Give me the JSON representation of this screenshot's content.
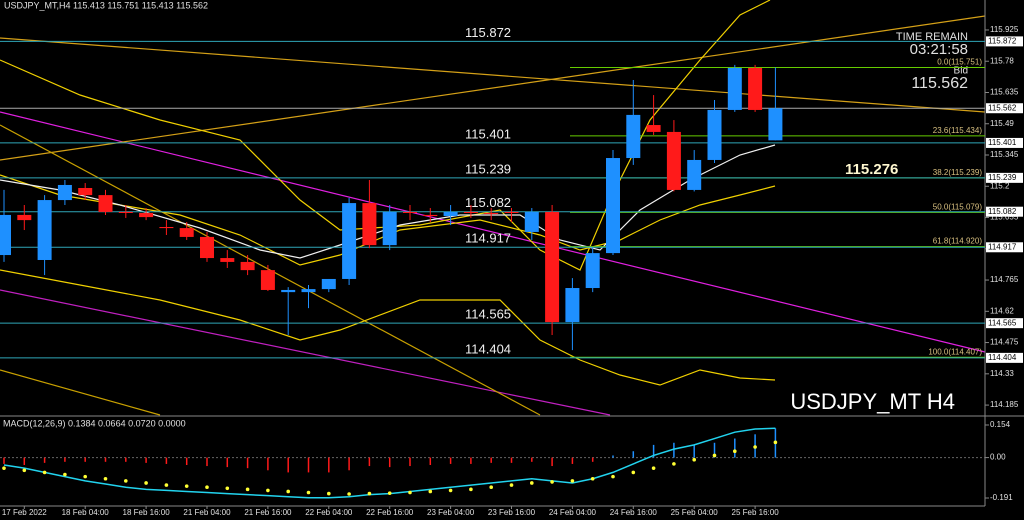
{
  "chart_data": [
    {
      "type": "candlestick",
      "title": "USDJPY_MT,H4  115.413 115.751 115.413 115.562",
      "watermark": "USDJPY_MT H4",
      "time_remain_label": "TIME REMAIN",
      "time_remain": "03:21:58",
      "bid_label": "Bid",
      "marker": 115.276,
      "up_color": "#1e90ff",
      "down_color": "#ff1a1a",
      "categories": [
        null,
        "17 Feb 2022",
        null,
        null,
        "18 Feb 04:00",
        null,
        null,
        "18 Feb 16:00",
        null,
        null,
        "21 Feb 04:00",
        null,
        null,
        "21 Feb 16:00",
        null,
        null,
        "22 Feb 04:00",
        null,
        null,
        "22 Feb 16:00",
        null,
        null,
        "23 Feb 04:00",
        null,
        null,
        "23 Feb 16:00",
        null,
        null,
        "24 Feb 04:00",
        null,
        null,
        "24 Feb 16:00",
        null,
        null,
        "25 Feb 04:00",
        null,
        null,
        "25 Feb 16:00",
        null
      ],
      "open": [
        114.881,
        115.067,
        114.858,
        115.136,
        115.192,
        115.159,
        115.081,
        115.076,
        115.011,
        115.006,
        114.965,
        114.867,
        114.849,
        114.811,
        114.709,
        114.709,
        114.723,
        114.77,
        115.122,
        114.927,
        115.081,
        115.067,
        115.062,
        115.081,
        115.076,
        115.081,
        114.988,
        115.081,
        114.57,
        114.728,
        114.89,
        115.331,
        115.484,
        115.452,
        115.183,
        115.322,
        115.554,
        115.749,
        115.413
      ],
      "high": [
        115.183,
        115.113,
        115.159,
        115.229,
        115.215,
        115.183,
        115.113,
        115.099,
        115.043,
        115.034,
        114.988,
        114.904,
        114.881,
        114.835,
        114.732,
        114.742,
        114.77,
        115.146,
        115.229,
        115.113,
        115.113,
        115.099,
        115.113,
        115.113,
        115.099,
        115.099,
        115.099,
        115.113,
        114.774,
        114.918,
        115.368,
        115.693,
        115.623,
        115.507,
        115.368,
        115.6,
        115.763,
        115.763,
        115.751
      ],
      "low": [
        114.849,
        114.997,
        114.788,
        115.113,
        115.136,
        115.067,
        115.053,
        115.043,
        114.974,
        114.951,
        114.849,
        114.821,
        114.788,
        114.714,
        114.51,
        114.635,
        114.709,
        114.742,
        114.913,
        114.904,
        115.043,
        115.034,
        115.02,
        115.053,
        115.043,
        115.034,
        114.951,
        114.51,
        114.44,
        114.709,
        114.881,
        115.299,
        115.438,
        115.176,
        115.176,
        115.308,
        115.545,
        115.545,
        115.413
      ],
      "close": [
        115.067,
        115.043,
        115.136,
        115.206,
        115.159,
        115.081,
        115.076,
        115.057,
        115.006,
        114.965,
        114.867,
        114.849,
        114.811,
        114.719,
        114.719,
        114.723,
        114.77,
        115.122,
        114.927,
        115.081,
        115.076,
        115.062,
        115.081,
        115.076,
        115.071,
        115.076,
        115.081,
        114.57,
        114.728,
        114.89,
        115.331,
        115.531,
        115.452,
        115.183,
        115.322,
        115.554,
        115.749,
        115.554,
        115.562
      ],
      "ylim": [
        114.139,
        116.064
      ],
      "yticks": [
        115.925,
        115.78,
        115.635,
        115.49,
        115.345,
        115.2,
        115.055,
        114.91,
        114.765,
        114.62,
        114.475,
        114.33,
        114.185
      ],
      "levels": [
        115.872,
        115.401,
        115.239,
        115.082,
        114.917,
        114.565,
        114.404
      ],
      "level_color": "#2fa6b8",
      "fibonacci": [
        {
          "value": 115.751,
          "label": "0.0(115.751)"
        },
        {
          "value": 115.434,
          "label": "23.6(115.434)"
        },
        {
          "value": 115.239,
          "label": "38.2(115.239)"
        },
        {
          "value": 115.079,
          "label": "50.0(115.079)"
        },
        {
          "value": 114.92,
          "label": "61.8(114.920)"
        },
        {
          "value": 114.407,
          "label": "100.0(114.407)"
        }
      ],
      "fib_color": "#66cc00"
    },
    {
      "type": "macd",
      "title": "MACD(12,26,9) 0.1384 0.0664 0.0720 0.0000",
      "histogram": [
        -0.03,
        -0.035,
        -0.025,
        -0.02,
        -0.02,
        -0.02,
        -0.02,
        -0.025,
        -0.03,
        -0.035,
        -0.04,
        -0.045,
        -0.05,
        -0.06,
        -0.07,
        -0.07,
        -0.07,
        -0.06,
        -0.04,
        -0.045,
        -0.04,
        -0.035,
        -0.03,
        -0.03,
        -0.025,
        -0.025,
        -0.02,
        -0.04,
        -0.03,
        -0.02,
        0.01,
        0.03,
        0.06,
        0.07,
        0.06,
        0.07,
        0.09,
        0.11,
        0.1384
      ],
      "up_color": "#1e90ff",
      "down_color": "#ff1a1a",
      "series": [
        {
          "color": "#22d3ee",
          "values": [
            -0.035,
            -0.05,
            -0.07,
            -0.09,
            -0.11,
            -0.125,
            -0.14,
            -0.15,
            -0.155,
            -0.16,
            -0.165,
            -0.17,
            -0.175,
            -0.18,
            -0.185,
            -0.19,
            -0.19,
            -0.185,
            -0.175,
            -0.17,
            -0.16,
            -0.15,
            -0.14,
            -0.13,
            -0.12,
            -0.11,
            -0.1,
            -0.11,
            -0.12,
            -0.1,
            -0.07,
            -0.03,
            0.01,
            0.04,
            0.06,
            0.09,
            0.12,
            0.135,
            0.1384
          ]
        },
        {
          "color": "#ffff33",
          "values": [
            -0.05,
            -0.06,
            -0.07,
            -0.08,
            -0.09,
            -0.1,
            -0.11,
            -0.12,
            -0.13,
            -0.135,
            -0.14,
            -0.145,
            -0.15,
            -0.155,
            -0.16,
            -0.165,
            -0.17,
            -0.172,
            -0.17,
            -0.168,
            -0.165,
            -0.16,
            -0.155,
            -0.15,
            -0.14,
            -0.13,
            -0.12,
            -0.115,
            -0.11,
            -0.1,
            -0.09,
            -0.07,
            -0.05,
            -0.03,
            -0.01,
            0.01,
            0.03,
            0.05,
            0.072
          ]
        }
      ],
      "ylim": [
        -0.224,
        0.187
      ],
      "yticks": [
        0.154,
        {
          "value": 0,
          "label": "0.00"
        },
        -0.191
      ]
    }
  ]
}
